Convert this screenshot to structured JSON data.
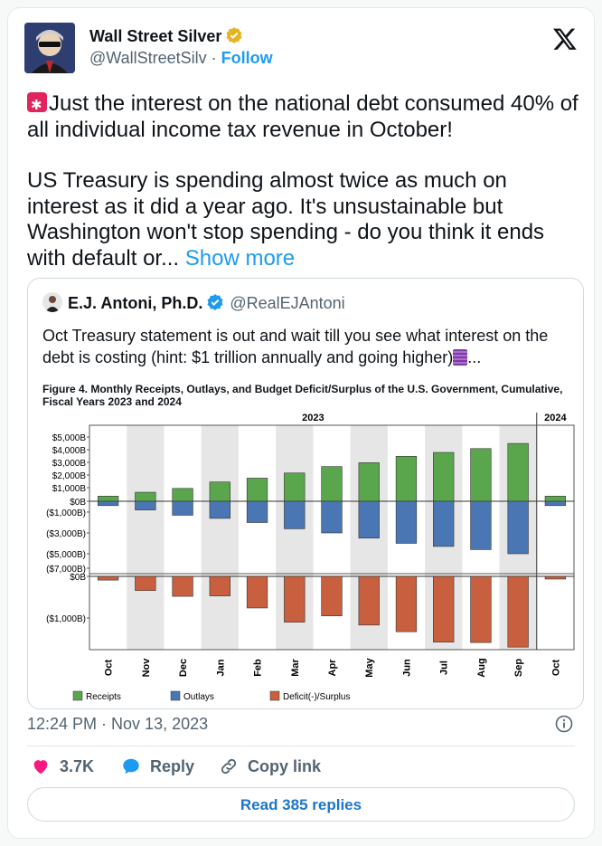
{
  "author": {
    "name": "Wall Street Silver",
    "handle": "@WallStreetSilv",
    "separator": "·",
    "follow_label": "Follow"
  },
  "tweet": {
    "paragraph1": "Just the interest on the national debt consumed 40% of all individual income tax revenue in October!",
    "paragraph2": "US Treasury is spending almost twice as much on interest as it did a year ago. It's unsustainable but Washington won't stop spending - do you think it ends with default or...",
    "show_more": "Show more"
  },
  "quoted": {
    "name": "E.J. Antoni, Ph.D.",
    "handle": "@RealEJAntoni",
    "text": "Oct Treasury statement is out and wait till you see what interest on the debt is costing (hint: $1 trillion annually and going higher)",
    "ellipsis": "...",
    "figure_title": "Figure 4. Monthly Receipts, Outlays, and Budget Deficit/Surplus of the U.S. Government, Cumulative, Fiscal Years 2023 and 2024"
  },
  "chart_data": {
    "type": "bar",
    "categories": [
      "Oct",
      "Nov",
      "Dec",
      "Jan",
      "Feb",
      "Mar",
      "Apr",
      "May",
      "Jun",
      "Jul",
      "Aug",
      "Sep",
      "Oct"
    ],
    "year_labels": [
      "2023",
      "2024"
    ],
    "upper_panel": {
      "y_ticks": [
        "$5,000B",
        "$4,000B",
        "$3,000B",
        "$2,000B",
        "$1,000B",
        "$0B",
        "($1,000B)",
        "($3,000B)",
        "($5,000B)",
        "($7,000B)"
      ],
      "y_tick_values": [
        5000,
        4000,
        3000,
        2000,
        1000,
        0,
        -1000,
        -3000,
        -5000,
        -7000
      ],
      "series": [
        {
          "name": "Receipts",
          "values": [
            400,
            700,
            1000,
            1500,
            1800,
            2200,
            2700,
            3000,
            3500,
            3800,
            4100,
            4500,
            400
          ]
        },
        {
          "name": "Outlays",
          "values": [
            -400,
            -800,
            -1300,
            -1600,
            -2000,
            -2600,
            -3000,
            -3500,
            -4000,
            -4300,
            -4600,
            -5000,
            -400
          ]
        }
      ]
    },
    "lower_panel": {
      "y_ticks": [
        "$0B",
        "($1,000B)"
      ],
      "y_tick_values": [
        0,
        -1000
      ],
      "series": [
        {
          "name": "Deficit(-)/Surplus",
          "values": [
            -90,
            -340,
            -480,
            -470,
            -760,
            -1100,
            -950,
            -1170,
            -1330,
            -1580,
            -1590,
            -1700,
            -65
          ]
        }
      ]
    },
    "legend_position": "bottom"
  },
  "colors": {
    "receipts": "#5aa64d",
    "outlays": "#4a77b4",
    "deficit": "#c85f3e",
    "link": "#1d9bf0"
  },
  "meta": {
    "timestamp": "12:24 PM · Nov 13, 2023",
    "likes": "3.7K",
    "reply_label": "Reply",
    "copy_link_label": "Copy link",
    "read_replies_label": "Read 385 replies"
  }
}
